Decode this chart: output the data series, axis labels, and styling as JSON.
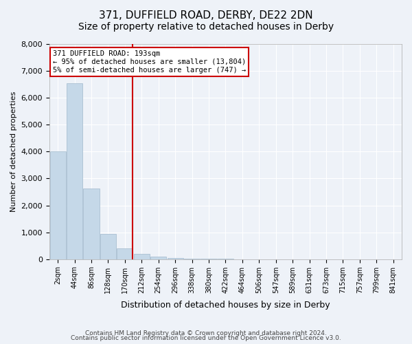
{
  "title": "371, DUFFIELD ROAD, DERBY, DE22 2DN",
  "subtitle": "Size of property relative to detached houses in Derby",
  "xlabel": "Distribution of detached houses by size in Derby",
  "ylabel": "Number of detached properties",
  "footer_line1": "Contains HM Land Registry data © Crown copyright and database right 2024.",
  "footer_line2": "Contains public sector information licensed under the Open Government Licence v3.0.",
  "bin_labels": [
    "2sqm",
    "44sqm",
    "86sqm",
    "128sqm",
    "170sqm",
    "212sqm",
    "254sqm",
    "296sqm",
    "338sqm",
    "380sqm",
    "422sqm",
    "464sqm",
    "506sqm",
    "547sqm",
    "589sqm",
    "631sqm",
    "673sqm",
    "715sqm",
    "757sqm",
    "799sqm",
    "841sqm"
  ],
  "bar_values": [
    4000,
    6550,
    2620,
    950,
    400,
    200,
    100,
    50,
    25,
    15,
    8,
    4,
    2,
    1,
    0,
    0,
    0,
    0,
    0,
    0,
    0
  ],
  "bar_color": "#c5d8e8",
  "bar_edge_color": "#a0b8cc",
  "red_line_x": 4.45,
  "annotation_text_line1": "371 DUFFIELD ROAD: 193sqm",
  "annotation_text_line2": "← 95% of detached houses are smaller (13,804)",
  "annotation_text_line3": "5% of semi-detached houses are larger (747) →",
  "red_line_color": "#cc0000",
  "annotation_box_color": "#cc0000",
  "ylim": [
    0,
    8000
  ],
  "background_color": "#eef2f8",
  "grid_color": "#ffffff",
  "title_fontsize": 11,
  "subtitle_fontsize": 10
}
